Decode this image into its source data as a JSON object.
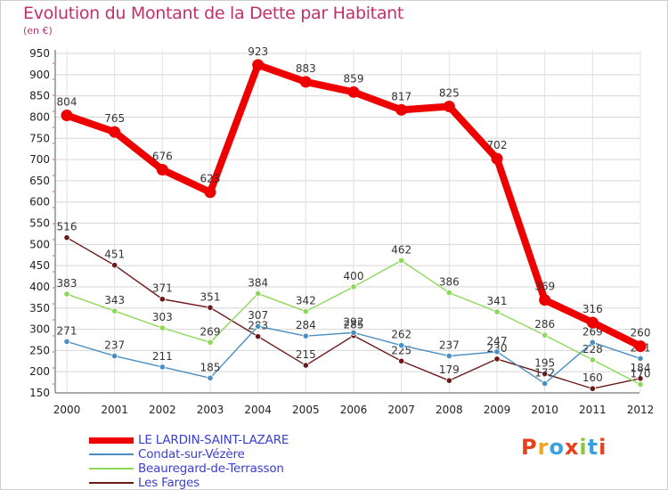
{
  "header": {
    "title": "Evolution du Montant de la Dette par Habitant",
    "subtitle": "(en €)"
  },
  "logo": {
    "text": "Proxiti",
    "letters": [
      {
        "ch": "P",
        "color": "#e8401c"
      },
      {
        "ch": "r",
        "color": "#f2a51f"
      },
      {
        "ch": "o",
        "color": "#3aa3dc"
      },
      {
        "ch": "x",
        "color": "#e8401c"
      },
      {
        "ch": "i",
        "color": "#8cc63f"
      },
      {
        "ch": "t",
        "color": "#3aa3dc"
      },
      {
        "ch": "i",
        "color": "#e8401c"
      }
    ]
  },
  "chart_data": {
    "type": "line",
    "title": "Evolution du Montant de la Dette par Habitant",
    "subtitle": "(en €)",
    "x": [
      "2000",
      "2001",
      "2002",
      "2003",
      "2004",
      "2005",
      "2006",
      "2007",
      "2008",
      "2009",
      "2010",
      "2011",
      "2012"
    ],
    "ylim": [
      150,
      950
    ],
    "yticks": [
      150,
      200,
      250,
      300,
      350,
      400,
      450,
      500,
      550,
      600,
      650,
      700,
      750,
      800,
      850,
      900,
      950
    ],
    "grid": true,
    "legend_position": "bottom-left",
    "series": [
      {
        "name": "Les Farges",
        "color": "#6b1a1a",
        "values": [
          516,
          451,
          371,
          351,
          283,
          215,
          285,
          225,
          179,
          230,
          195,
          160,
          184
        ]
      },
      {
        "name": "Beauregard-de-Terrasson",
        "color": "#8cd957",
        "values": [
          383,
          343,
          303,
          269,
          384,
          342,
          400,
          462,
          386,
          341,
          286,
          228,
          170
        ]
      },
      {
        "name": "Condat-sur-Vézère",
        "color": "#4a8ec2",
        "values": [
          271,
          237,
          211,
          185,
          307,
          284,
          292,
          262,
          237,
          247,
          172,
          269,
          231
        ]
      },
      {
        "name": "LE LARDIN-SAINT-LAZARE",
        "color": "#ee0000",
        "values": [
          804,
          765,
          676,
          623,
          923,
          883,
          859,
          817,
          825,
          702,
          369,
          316,
          260
        ]
      }
    ]
  }
}
